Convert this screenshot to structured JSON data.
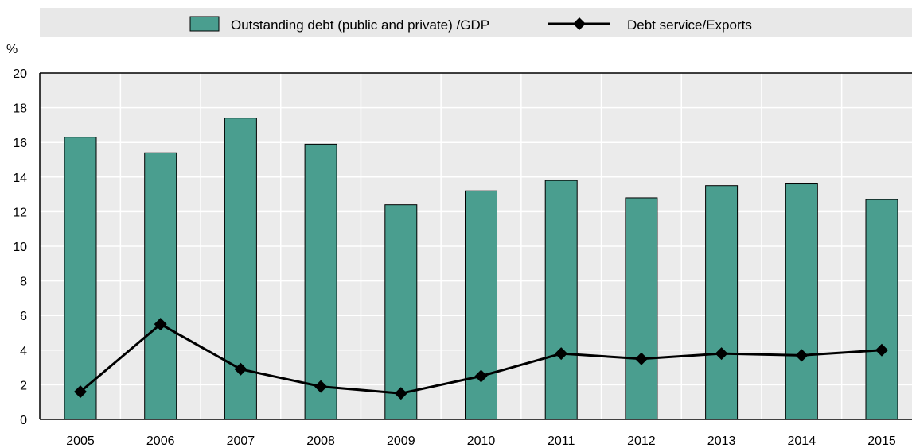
{
  "chart_data": {
    "type": "bar",
    "ylabel": "%",
    "ylim": [
      0,
      20
    ],
    "yticks": [
      "0",
      "2",
      "4",
      "6",
      "8",
      "10",
      "12",
      "14",
      "16",
      "18",
      "20"
    ],
    "categories": [
      "2005",
      "2006",
      "2007",
      "2008",
      "2009",
      "2010",
      "2011",
      "2012",
      "2013",
      "2014",
      "2015"
    ],
    "series": [
      {
        "name": "Outstanding debt (public and private) /GDP",
        "kind": "bar",
        "color": "#4a9e8f",
        "values": [
          16.3,
          15.4,
          17.4,
          15.9,
          12.4,
          13.2,
          13.8,
          12.8,
          13.5,
          13.6,
          12.7
        ]
      },
      {
        "name": "Debt service/Exports",
        "kind": "line",
        "marker": "diamond",
        "color": "#000000",
        "values": [
          1.6,
          5.5,
          2.9,
          1.9,
          1.5,
          2.5,
          3.8,
          3.5,
          3.8,
          3.7,
          4.0
        ]
      }
    ],
    "grid": true,
    "legend_position": "top"
  }
}
